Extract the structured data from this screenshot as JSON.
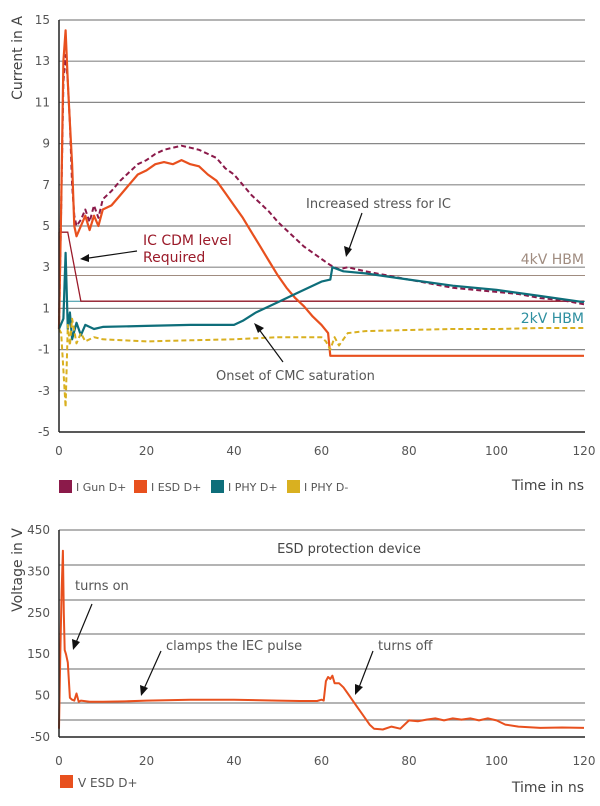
{
  "chart_data": [
    {
      "type": "line",
      "title": "",
      "ylabel": "Current in A",
      "xlabel": "Time in ns",
      "xlim": [
        0,
        120
      ],
      "ylim": [
        -5,
        15
      ],
      "xticks": [
        0,
        20,
        40,
        60,
        80,
        100,
        120
      ],
      "yticks": [
        15,
        13,
        11,
        9,
        7,
        5,
        3,
        1,
        -1,
        -3,
        -5
      ],
      "grid": true,
      "legend_position": "bottom-left",
      "reference_lines": [
        {
          "label": "4kV HBM",
          "value": 2.6,
          "color": "#a08c80"
        },
        {
          "label": "2kV HBM",
          "value": 1.35,
          "color": "#2e8fa0"
        }
      ],
      "cdm_line": {
        "label": "IC CDM level Required",
        "x": [
          0,
          2,
          5,
          120
        ],
        "y": [
          4.7,
          4.7,
          1.35,
          1.35
        ],
        "color": "#9b1b2a"
      },
      "series": [
        {
          "name": "I Gun D+",
          "color": "#8b1a4a",
          "dash": true,
          "x": [
            0,
            0.5,
            1,
            1.5,
            2,
            2.5,
            3,
            3.5,
            4,
            5,
            6,
            7,
            8,
            9,
            10,
            12,
            14,
            16,
            18,
            20,
            22,
            24,
            26,
            28,
            30,
            32,
            34,
            36,
            38,
            40,
            42,
            44,
            46,
            48,
            50,
            52,
            54,
            56,
            58,
            60,
            62,
            64,
            66,
            68,
            70,
            75,
            80,
            85,
            90,
            95,
            100,
            105,
            110,
            115,
            120
          ],
          "y": [
            0,
            6,
            12,
            13.3,
            12,
            10,
            7,
            5.5,
            5,
            5.3,
            5.8,
            5.2,
            6,
            5.4,
            6.3,
            6.7,
            7.2,
            7.6,
            8,
            8.2,
            8.5,
            8.7,
            8.8,
            8.9,
            8.8,
            8.7,
            8.5,
            8.3,
            7.8,
            7.5,
            7.0,
            6.5,
            6.1,
            5.7,
            5.2,
            4.8,
            4.4,
            4.0,
            3.7,
            3.4,
            3.1,
            2.9,
            3.0,
            2.9,
            2.8,
            2.6,
            2.4,
            2.2,
            2.0,
            1.9,
            1.8,
            1.7,
            1.5,
            1.4,
            1.2
          ]
        },
        {
          "name": "I ESD D+",
          "color": "#e8501e",
          "dash": false,
          "x": [
            0,
            0.5,
            1,
            1.5,
            2,
            2.5,
            3,
            3.5,
            4,
            5,
            6,
            7,
            8,
            9,
            10,
            12,
            14,
            16,
            18,
            20,
            22,
            24,
            26,
            28,
            30,
            32,
            34,
            36,
            38,
            40,
            42,
            44,
            46,
            48,
            50,
            52,
            54,
            56,
            58,
            60,
            61.5,
            62,
            64,
            70,
            80,
            90,
            100,
            110,
            120
          ],
          "y": [
            0,
            6,
            13,
            14.5,
            12,
            10,
            8,
            5,
            4.5,
            5.0,
            5.5,
            4.8,
            5.5,
            5.0,
            5.8,
            6.0,
            6.5,
            7.0,
            7.5,
            7.7,
            8.0,
            8.1,
            8.0,
            8.2,
            8.0,
            7.9,
            7.5,
            7.2,
            6.6,
            6.0,
            5.4,
            4.7,
            4.0,
            3.3,
            2.6,
            2.0,
            1.5,
            1.1,
            0.6,
            0.2,
            -0.2,
            -1.3,
            -1.3,
            -1.3,
            -1.3,
            -1.3,
            -1.3,
            -1.3,
            -1.3
          ]
        },
        {
          "name": "I PHY D+",
          "color": "#0e6e7a",
          "dash": false,
          "x": [
            0,
            1,
            1.5,
            2,
            2.5,
            3,
            4,
            5,
            6,
            8,
            10,
            20,
            30,
            40,
            42,
            45,
            50,
            55,
            60,
            62,
            62.5,
            65,
            70,
            80,
            90,
            100,
            110,
            120
          ],
          "y": [
            0,
            0.5,
            3.7,
            0,
            0.8,
            -0.5,
            0.3,
            -0.3,
            0.2,
            0,
            0.1,
            0.15,
            0.2,
            0.2,
            0.4,
            0.8,
            1.3,
            1.8,
            2.3,
            2.4,
            3.0,
            2.8,
            2.7,
            2.4,
            2.1,
            1.9,
            1.6,
            1.3
          ]
        },
        {
          "name": "I PHY D-",
          "color": "#d9b020",
          "dash": true,
          "x": [
            0,
            0.5,
            1,
            1.5,
            2,
            2.5,
            3,
            4,
            5,
            6,
            8,
            10,
            20,
            30,
            40,
            50,
            55,
            58,
            60,
            61,
            62,
            63,
            64,
            66,
            70,
            80,
            90,
            100,
            110,
            120
          ],
          "y": [
            0,
            -0.2,
            -2,
            -3.8,
            0.2,
            -0.8,
            0.5,
            -0.7,
            -0.2,
            -0.6,
            -0.4,
            -0.5,
            -0.6,
            -0.55,
            -0.5,
            -0.4,
            -0.4,
            -0.4,
            -0.4,
            -0.6,
            -1.0,
            -0.4,
            -0.8,
            -0.2,
            -0.1,
            -0.05,
            0,
            0,
            0.05,
            0.05
          ]
        }
      ],
      "annotations": [
        {
          "text": "IC CDM level",
          "text2": "Required",
          "color": "#9b1b2a",
          "arrow_to": [
            3,
            3.3
          ]
        },
        {
          "text": "Increased stress for IC",
          "color": "#555",
          "arrow_to": [
            61,
            3.2
          ]
        },
        {
          "text": "Onset of CMC saturation",
          "color": "#555",
          "arrow_to": [
            44,
            0.6
          ]
        },
        {
          "text": "4kV HBM",
          "color": "#a08c80"
        },
        {
          "text": "2kV HBM",
          "color": "#2e8fa0"
        }
      ]
    },
    {
      "type": "line",
      "title": "ESD protection device",
      "ylabel": "Voltage in V",
      "xlabel": "Time in ns",
      "xlim": [
        0,
        120
      ],
      "ylim": [
        -50,
        450
      ],
      "xticks": [
        0,
        20,
        40,
        60,
        80,
        100,
        120
      ],
      "yticks": [
        450,
        350,
        250,
        150,
        50,
        -50
      ],
      "grid": true,
      "legend_position": "bottom-left",
      "series": [
        {
          "name": "V ESD D+",
          "color": "#e8501e",
          "x": [
            0,
            0.3,
            0.6,
            0.9,
            1.1,
            1.3,
            1.6,
            2,
            2.5,
            3,
            3.5,
            4,
            4.5,
            5,
            7,
            10,
            15,
            20,
            30,
            40,
            50,
            55,
            59,
            60,
            60.5,
            61,
            61.5,
            62,
            62.5,
            63,
            64,
            65,
            66,
            67,
            68,
            69,
            70,
            71,
            72,
            74,
            76,
            78,
            80,
            82,
            84,
            86,
            88,
            90,
            92,
            94,
            96,
            98,
            100,
            102,
            105,
            110,
            115,
            120
          ],
          "y": [
            -30,
            150,
            300,
            400,
            250,
            160,
            150,
            130,
            45,
            40,
            38,
            55,
            35,
            38,
            35,
            35,
            36,
            38,
            40,
            40,
            38,
            37,
            37,
            40,
            38,
            85,
            95,
            90,
            98,
            80,
            80,
            70,
            55,
            40,
            25,
            10,
            -5,
            -20,
            -30,
            -32,
            -25,
            -30,
            -10,
            -12,
            -8,
            -5,
            -10,
            -5,
            -8,
            -5,
            -10,
            -5,
            -10,
            -20,
            -25,
            -28,
            -27,
            -28
          ]
        }
      ],
      "annotations": [
        {
          "text": "turns on",
          "arrow_to": [
            1.5,
            150
          ]
        },
        {
          "text": "clamps the IEC pulse",
          "arrow_to": [
            20,
            45
          ]
        },
        {
          "text": "turns off",
          "arrow_to": [
            67,
            70
          ]
        }
      ]
    }
  ]
}
